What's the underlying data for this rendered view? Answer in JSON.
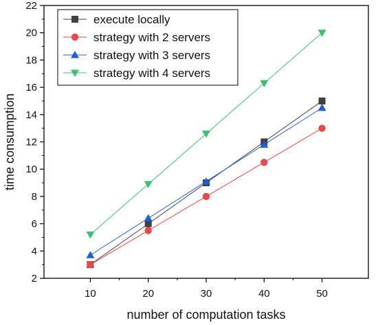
{
  "chart_data": {
    "type": "line",
    "xlabel": "number of computation tasks",
    "ylabel": "time consumption",
    "x": [
      10,
      20,
      30,
      40,
      50
    ],
    "xlim": [
      2,
      58
    ],
    "ylim": [
      2,
      22
    ],
    "xticks": [
      10,
      20,
      30,
      40,
      50
    ],
    "yticks": [
      2,
      4,
      6,
      8,
      10,
      12,
      14,
      16,
      18,
      20,
      22
    ],
    "grid": false,
    "legend_position": "top-left",
    "series": [
      {
        "name": "execute locally",
        "values": [
          3.0,
          6.0,
          9.0,
          12.0,
          15.0
        ],
        "color": "#404040",
        "marker": "square"
      },
      {
        "name": "strategy with 2 servers",
        "values": [
          3.0,
          5.5,
          8.0,
          10.5,
          13.0
        ],
        "color": "#e8474b",
        "marker": "circle"
      },
      {
        "name": "strategy with 3 servers",
        "values": [
          3.7,
          6.4,
          9.1,
          11.8,
          14.5
        ],
        "color": "#1f5fd6",
        "marker": "triangle-up"
      },
      {
        "name": "strategy with 4 servers",
        "values": [
          5.2,
          8.9,
          12.6,
          16.3,
          20.0
        ],
        "color": "#3cbf71",
        "marker": "triangle-down"
      }
    ]
  }
}
